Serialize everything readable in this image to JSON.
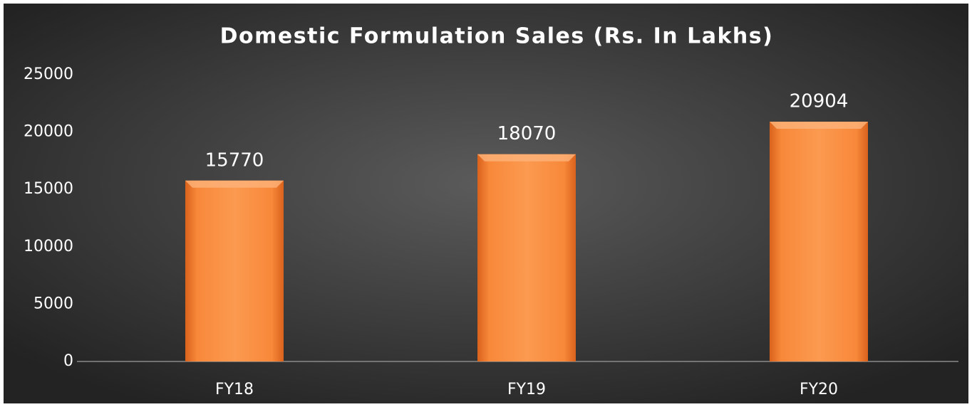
{
  "chart_data": {
    "type": "bar",
    "title": "Domestic Formulation Sales (Rs. In Lakhs)",
    "categories": [
      "FY18",
      "FY19",
      "FY20"
    ],
    "values": [
      15770,
      18070,
      20904
    ],
    "color": "#f98a3a",
    "ylim": [
      0,
      25000
    ],
    "yticks": [
      0,
      5000,
      10000,
      15000,
      20000,
      25000
    ],
    "grid": false
  }
}
